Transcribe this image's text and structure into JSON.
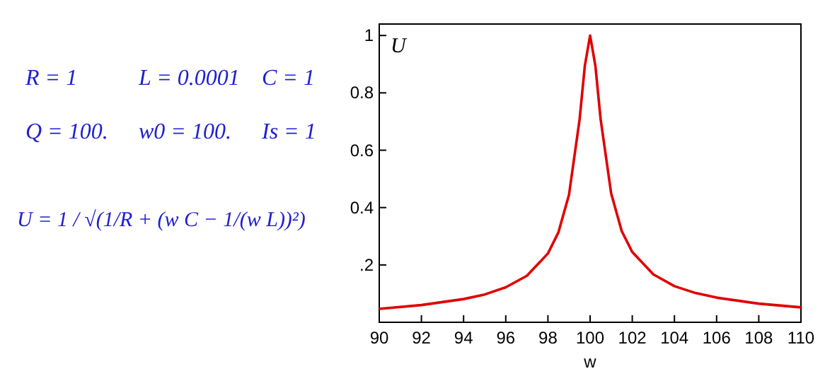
{
  "chart_data": {
    "type": "line",
    "ylabel": "U",
    "xlabel": "w",
    "x": [
      90,
      92,
      94,
      95,
      96,
      97,
      98,
      98.5,
      99,
      99.5,
      99.75,
      100,
      100.25,
      100.5,
      101,
      101.5,
      102,
      103,
      104,
      105,
      106,
      108,
      110
    ],
    "series": [
      {
        "color": "#e00000",
        "values": [
          0.047,
          0.06,
          0.081,
          0.097,
          0.122,
          0.162,
          0.24,
          0.314,
          0.445,
          0.706,
          0.894,
          1,
          0.895,
          0.708,
          0.449,
          0.318,
          0.245,
          0.167,
          0.126,
          0.102,
          0.086,
          0.065,
          0.052
        ]
      }
    ],
    "xlim": [
      90,
      110
    ],
    "xticks": [
      90,
      92,
      94,
      96,
      98,
      100,
      102,
      104,
      106,
      108,
      110
    ],
    "ylim": [
      0,
      1.04
    ],
    "yticks": [
      {
        "value": 0.2,
        "label": ".2"
      },
      0.4,
      0.6,
      0.8,
      1
    ],
    "grid": false,
    "marker": "none",
    "line_style": "solid",
    "annotations": [
      "R = 1",
      "L = 0.0001",
      "C = 1",
      "Q = 100.",
      "w0 = 100.",
      "Is = 1",
      "U = 1 / √(1/R + (w C − 1/(w L))²)"
    ]
  }
}
